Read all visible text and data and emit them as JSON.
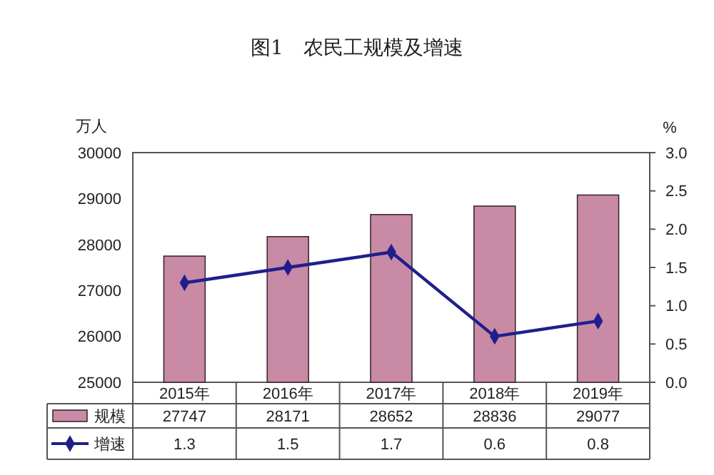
{
  "chart_data": {
    "type": "bar",
    "title": "图1　农民工规模及增速",
    "ylabel": "万人",
    "y2label": "%",
    "categories": [
      "2015年",
      "2016年",
      "2017年",
      "2018年",
      "2019年"
    ],
    "series": [
      {
        "name": "规模",
        "color": "#c98aa6",
        "values": [
          27747,
          28171,
          28652,
          28836,
          29077
        ]
      },
      {
        "name": "增速",
        "type": "line",
        "axis": "y2",
        "color": "#1f1f8c",
        "values": [
          1.3,
          1.5,
          1.7,
          0.6,
          0.8
        ]
      }
    ],
    "ylim": [
      25000,
      30000
    ],
    "yticks": [
      25000,
      26000,
      27000,
      28000,
      29000,
      30000
    ],
    "y2lim": [
      0,
      3
    ],
    "y2ticks": [
      {
        "value": 0,
        "label": "0.0"
      },
      {
        "value": 0.5,
        "label": "0.5"
      },
      {
        "value": 1,
        "label": "1.0"
      },
      {
        "value": 1.5,
        "label": "1.5"
      },
      {
        "value": 2,
        "label": "2.0"
      },
      {
        "value": 2.5,
        "label": "2.5"
      },
      {
        "value": 3,
        "label": "3.0"
      }
    ],
    "marker": "diamond",
    "data_labels": true,
    "legend": "bottom"
  }
}
